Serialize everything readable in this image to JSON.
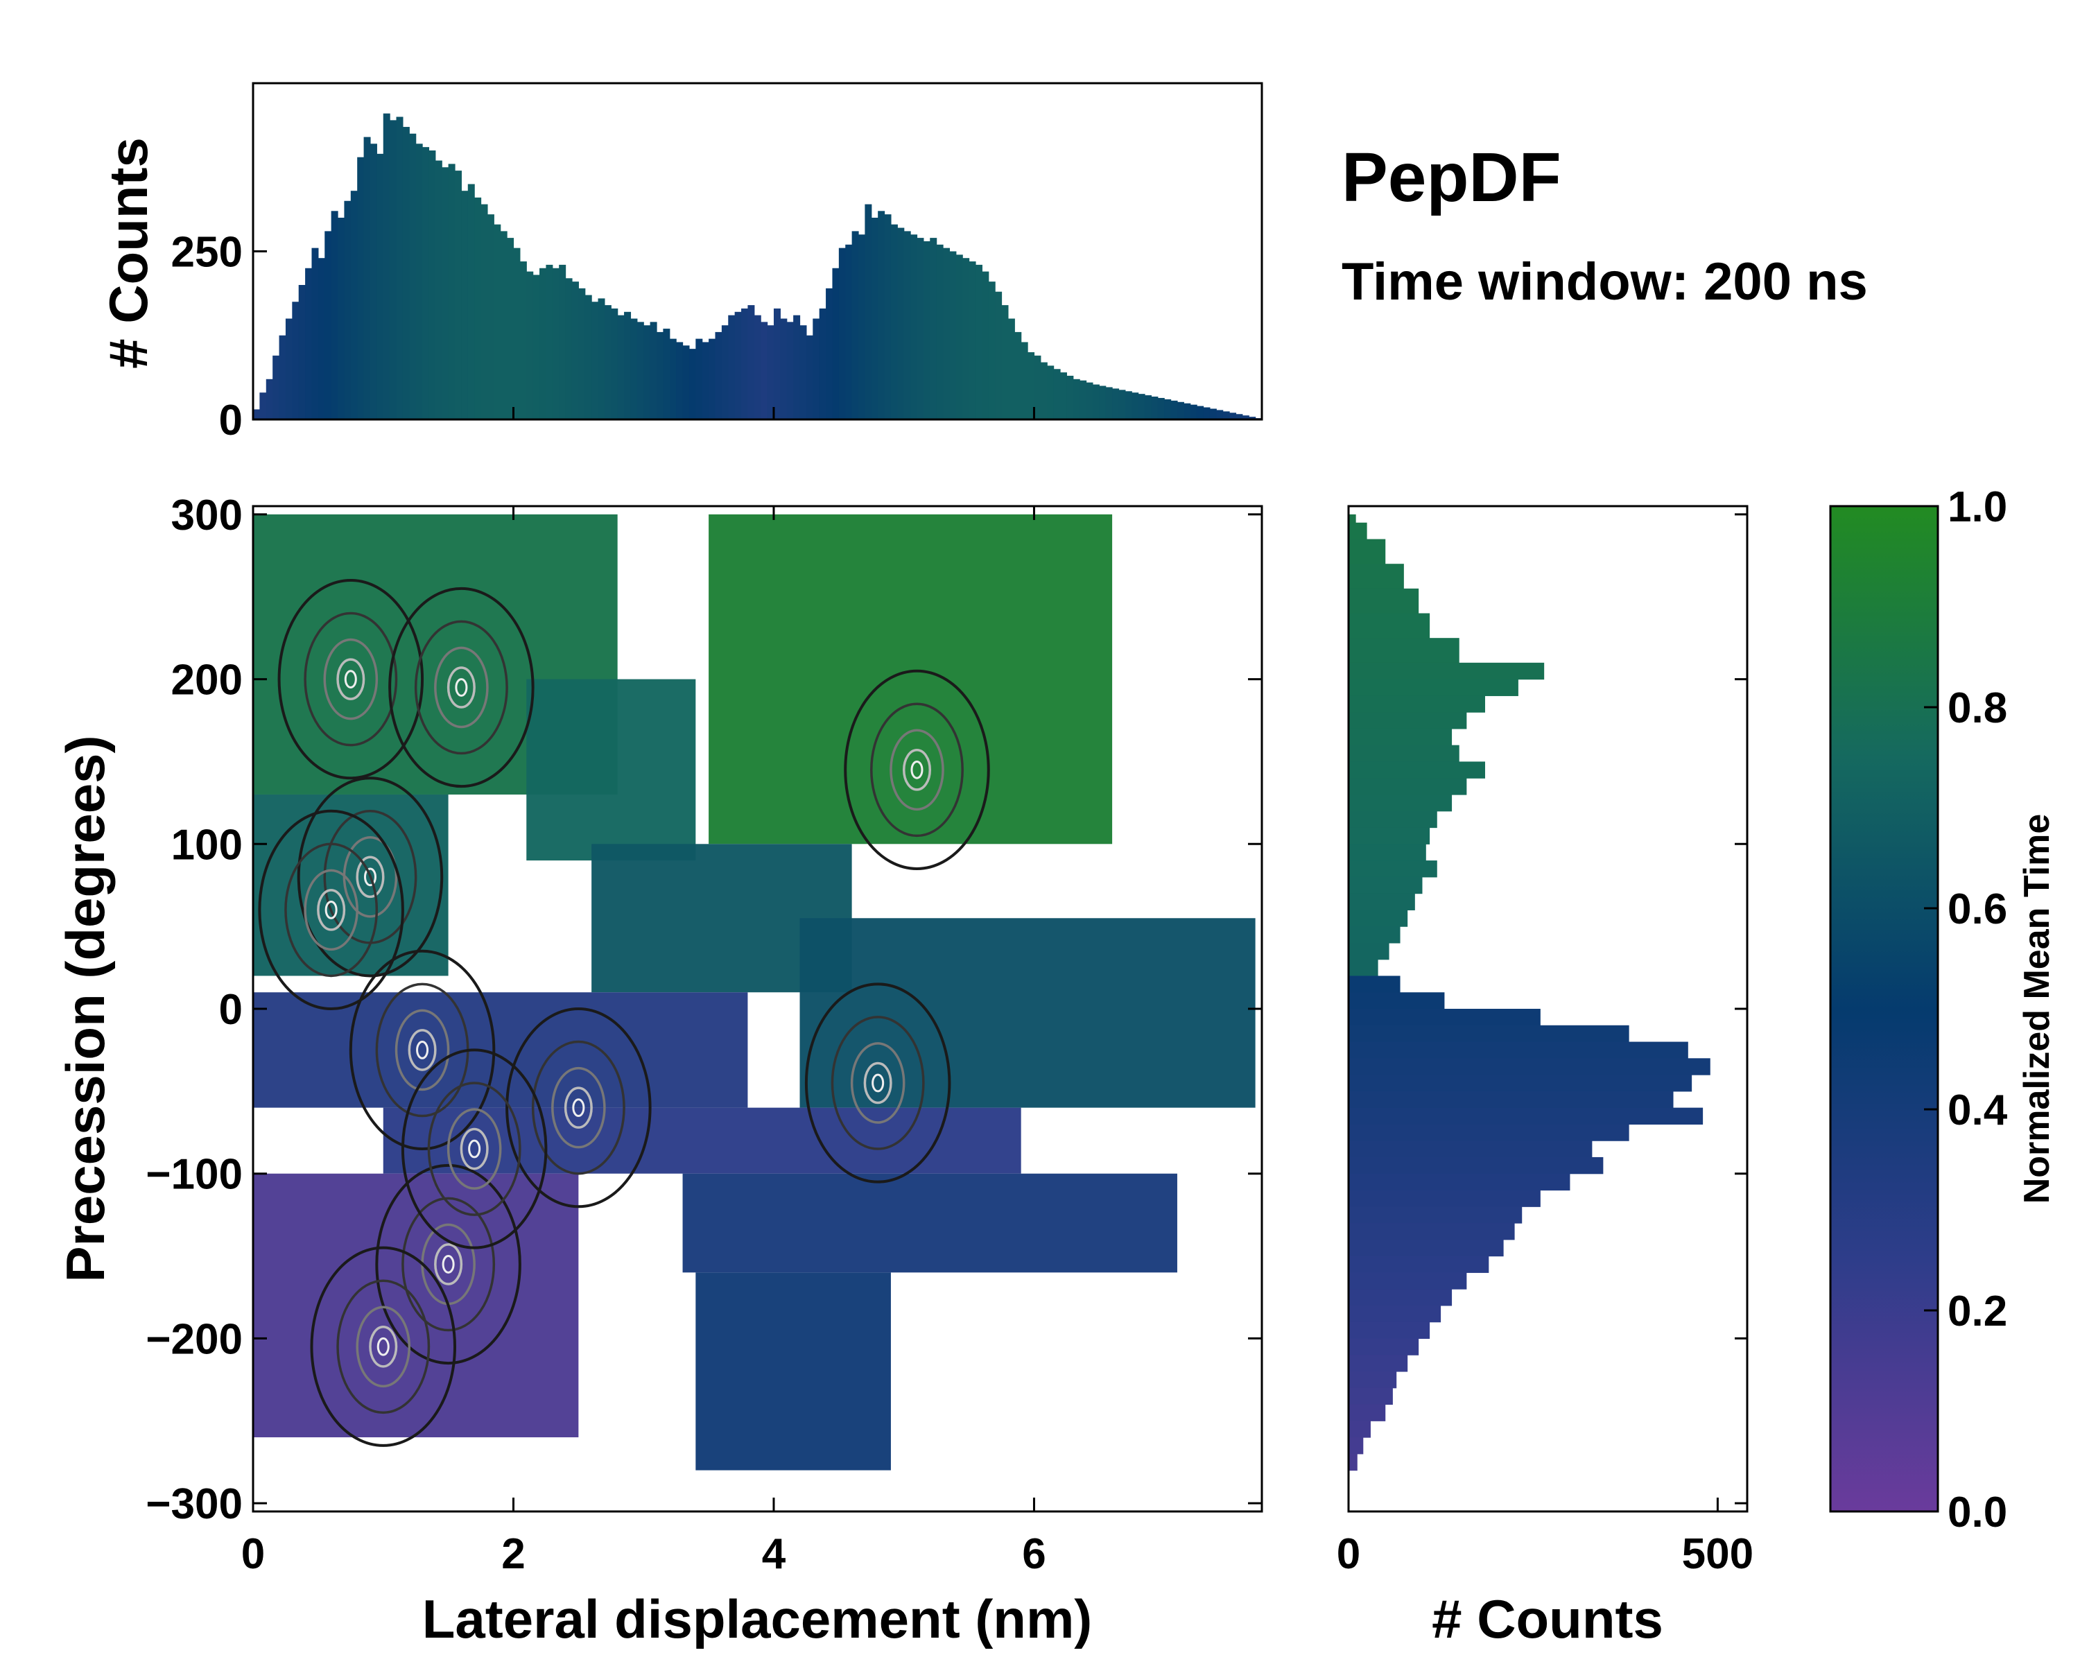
{
  "title": "PepDF",
  "subtitle": "Time window: 200 ns",
  "chart_data": [
    {
      "id": "main-2d",
      "type": "heatmap",
      "description_kind": "2D histogram colored by normalized mean time with density contours",
      "xlabel": "Lateral displacement (nm)",
      "ylabel": "Precession (degrees)",
      "xlim": [
        0,
        7.75
      ],
      "ylim": [
        -305,
        305
      ],
      "xticks": [
        0,
        2,
        4,
        6
      ],
      "yticks": [
        300,
        200,
        100,
        0,
        -100,
        -200,
        -300
      ],
      "xtick_labels": [
        "0",
        "2",
        "4",
        "6"
      ],
      "ytick_labels": [
        "300",
        "200",
        "100",
        "0",
        "−100",
        "−200",
        "−300"
      ],
      "regions": [
        {
          "x0": 0.0,
          "x1": 2.8,
          "y0": 130,
          "y1": 300,
          "value": 0.83
        },
        {
          "x0": 0.0,
          "x1": 1.5,
          "y0": 20,
          "y1": 130,
          "value": 0.72
        },
        {
          "x0": 2.1,
          "x1": 3.4,
          "y0": 90,
          "y1": 200,
          "value": 0.74
        },
        {
          "x0": 3.5,
          "x1": 6.6,
          "y0": 100,
          "y1": 300,
          "value": 0.92
        },
        {
          "x0": 2.6,
          "x1": 4.6,
          "y0": 10,
          "y1": 100,
          "value": 0.66
        },
        {
          "x0": 4.2,
          "x1": 7.7,
          "y0": -60,
          "y1": 55,
          "value": 0.62
        },
        {
          "x0": 0.0,
          "x1": 3.8,
          "y0": -60,
          "y1": 10,
          "value": 0.3
        },
        {
          "x0": 1.0,
          "x1": 5.9,
          "y0": -100,
          "y1": -60,
          "value": 0.26
        },
        {
          "x0": 0.0,
          "x1": 2.5,
          "y0": -260,
          "y1": -100,
          "value": 0.12
        },
        {
          "x0": 3.3,
          "x1": 7.1,
          "y0": -160,
          "y1": -100,
          "value": 0.37
        },
        {
          "x0": 3.4,
          "x1": 4.9,
          "y0": -280,
          "y1": -160,
          "value": 0.42
        }
      ],
      "density_peaks": [
        {
          "x": 0.75,
          "y": 200
        },
        {
          "x": 1.6,
          "y": 195
        },
        {
          "x": 0.9,
          "y": 80
        },
        {
          "x": 0.6,
          "y": 60
        },
        {
          "x": 4.8,
          "y": -45
        },
        {
          "x": 2.5,
          "y": -60
        },
        {
          "x": 1.3,
          "y": -25
        },
        {
          "x": 1.5,
          "y": -155
        },
        {
          "x": 1.0,
          "y": -205
        },
        {
          "x": 5.1,
          "y": 145
        },
        {
          "x": 1.7,
          "y": -85
        }
      ]
    },
    {
      "id": "top-histogram",
      "type": "bar",
      "description_kind": "marginal histogram of lateral displacement",
      "ylabel": "# Counts",
      "xlim": [
        0,
        7.75
      ],
      "ylim": [
        0,
        500
      ],
      "yticks": [
        0,
        250
      ],
      "ytick_labels": [
        "0",
        "250"
      ],
      "bin_width": 0.05,
      "x": [
        0.025,
        0.075,
        0.125,
        0.175,
        0.225,
        0.275,
        0.325,
        0.375,
        0.425,
        0.475,
        0.525,
        0.575,
        0.625,
        0.675,
        0.725,
        0.775,
        0.825,
        0.875,
        0.925,
        0.975,
        1.025,
        1.075,
        1.125,
        1.175,
        1.225,
        1.275,
        1.325,
        1.375,
        1.425,
        1.475,
        1.525,
        1.575,
        1.625,
        1.675,
        1.725,
        1.775,
        1.825,
        1.875,
        1.925,
        1.975,
        2.025,
        2.075,
        2.125,
        2.175,
        2.225,
        2.275,
        2.325,
        2.375,
        2.425,
        2.475,
        2.525,
        2.575,
        2.625,
        2.675,
        2.725,
        2.775,
        2.825,
        2.875,
        2.925,
        2.975,
        3.025,
        3.075,
        3.125,
        3.175,
        3.225,
        3.275,
        3.325,
        3.375,
        3.425,
        3.475,
        3.525,
        3.575,
        3.625,
        3.675,
        3.725,
        3.775,
        3.825,
        3.875,
        3.925,
        3.975,
        4.025,
        4.075,
        4.125,
        4.175,
        4.225,
        4.275,
        4.325,
        4.375,
        4.425,
        4.475,
        4.525,
        4.575,
        4.625,
        4.675,
        4.725,
        4.775,
        4.825,
        4.875,
        4.925,
        4.975,
        5.025,
        5.075,
        5.125,
        5.175,
        5.225,
        5.275,
        5.325,
        5.375,
        5.425,
        5.475,
        5.525,
        5.575,
        5.625,
        5.675,
        5.725,
        5.775,
        5.825,
        5.875,
        5.925,
        5.975,
        6.025,
        6.075,
        6.125,
        6.175,
        6.225,
        6.275,
        6.325,
        6.375,
        6.425,
        6.475,
        6.525,
        6.575,
        6.625,
        6.675,
        6.725,
        6.775,
        6.825,
        6.875,
        6.925,
        6.975,
        7.025,
        7.075,
        7.125,
        7.175,
        7.225,
        7.275,
        7.325,
        7.375,
        7.425,
        7.475,
        7.525,
        7.575,
        7.625,
        7.675,
        7.725
      ],
      "values": [
        15,
        40,
        60,
        95,
        125,
        150,
        175,
        200,
        225,
        255,
        240,
        280,
        310,
        300,
        325,
        340,
        390,
        420,
        410,
        395,
        455,
        445,
        450,
        435,
        425,
        410,
        405,
        400,
        385,
        375,
        380,
        370,
        340,
        350,
        330,
        320,
        305,
        290,
        280,
        270,
        255,
        235,
        220,
        215,
        225,
        230,
        225,
        230,
        210,
        205,
        195,
        185,
        175,
        180,
        170,
        165,
        155,
        160,
        150,
        145,
        140,
        145,
        130,
        135,
        120,
        115,
        110,
        105,
        120,
        115,
        120,
        130,
        140,
        155,
        160,
        165,
        170,
        155,
        145,
        140,
        165,
        150,
        145,
        155,
        140,
        125,
        150,
        165,
        195,
        225,
        255,
        260,
        280,
        275,
        320,
        300,
        310,
        305,
        290,
        285,
        280,
        275,
        270,
        265,
        270,
        260,
        255,
        250,
        245,
        240,
        235,
        230,
        220,
        205,
        190,
        170,
        150,
        130,
        115,
        100,
        95,
        85,
        80,
        75,
        70,
        65,
        60,
        58,
        55,
        52,
        50,
        48,
        46,
        44,
        42,
        40,
        38,
        36,
        34,
        32,
        30,
        28,
        26,
        24,
        22,
        20,
        18,
        16,
        14,
        12,
        10,
        8,
        6,
        4,
        2
      ]
    },
    {
      "id": "right-histogram",
      "type": "bar",
      "description_kind": "marginal histogram of precession (horizontal bars)",
      "xlabel": "# Counts",
      "xlim": [
        0,
        540
      ],
      "ylim": [
        -305,
        305
      ],
      "xticks": [
        0,
        500
      ],
      "xtick_labels": [
        "0",
        "500"
      ],
      "bin_width": 5,
      "bins": [
        {
          "y0": 295,
          "y1": 300,
          "v": 10
        },
        {
          "y0": 285,
          "y1": 295,
          "v": 25
        },
        {
          "y0": 270,
          "y1": 285,
          "v": 50
        },
        {
          "y0": 255,
          "y1": 270,
          "v": 75
        },
        {
          "y0": 240,
          "y1": 255,
          "v": 95
        },
        {
          "y0": 225,
          "y1": 240,
          "v": 110
        },
        {
          "y0": 210,
          "y1": 225,
          "v": 150
        },
        {
          "y0": 200,
          "y1": 210,
          "v": 265
        },
        {
          "y0": 190,
          "y1": 200,
          "v": 230
        },
        {
          "y0": 180,
          "y1": 190,
          "v": 185
        },
        {
          "y0": 170,
          "y1": 180,
          "v": 160
        },
        {
          "y0": 160,
          "y1": 170,
          "v": 140
        },
        {
          "y0": 150,
          "y1": 160,
          "v": 150
        },
        {
          "y0": 140,
          "y1": 150,
          "v": 185
        },
        {
          "y0": 130,
          "y1": 140,
          "v": 160
        },
        {
          "y0": 120,
          "y1": 130,
          "v": 140
        },
        {
          "y0": 110,
          "y1": 120,
          "v": 120
        },
        {
          "y0": 100,
          "y1": 110,
          "v": 110
        },
        {
          "y0": 90,
          "y1": 100,
          "v": 105
        },
        {
          "y0": 80,
          "y1": 90,
          "v": 120
        },
        {
          "y0": 70,
          "y1": 80,
          "v": 100
        },
        {
          "y0": 60,
          "y1": 70,
          "v": 90
        },
        {
          "y0": 50,
          "y1": 60,
          "v": 80
        },
        {
          "y0": 40,
          "y1": 50,
          "v": 70
        },
        {
          "y0": 30,
          "y1": 40,
          "v": 55
        },
        {
          "y0": 20,
          "y1": 30,
          "v": 40
        },
        {
          "y0": 10,
          "y1": 20,
          "v": 70
        },
        {
          "y0": 0,
          "y1": 10,
          "v": 130
        },
        {
          "y0": -10,
          "y1": 0,
          "v": 260
        },
        {
          "y0": -20,
          "y1": -10,
          "v": 380
        },
        {
          "y0": -30,
          "y1": -20,
          "v": 460
        },
        {
          "y0": -40,
          "y1": -30,
          "v": 490
        },
        {
          "y0": -50,
          "y1": -40,
          "v": 465
        },
        {
          "y0": -60,
          "y1": -50,
          "v": 440
        },
        {
          "y0": -70,
          "y1": -60,
          "v": 480
        },
        {
          "y0": -80,
          "y1": -70,
          "v": 380
        },
        {
          "y0": -90,
          "y1": -80,
          "v": 330
        },
        {
          "y0": -100,
          "y1": -90,
          "v": 345
        },
        {
          "y0": -110,
          "y1": -100,
          "v": 300
        },
        {
          "y0": -120,
          "y1": -110,
          "v": 260
        },
        {
          "y0": -130,
          "y1": -120,
          "v": 235
        },
        {
          "y0": -140,
          "y1": -130,
          "v": 225
        },
        {
          "y0": -150,
          "y1": -140,
          "v": 210
        },
        {
          "y0": -160,
          "y1": -150,
          "v": 190
        },
        {
          "y0": -170,
          "y1": -160,
          "v": 160
        },
        {
          "y0": -180,
          "y1": -170,
          "v": 140
        },
        {
          "y0": -190,
          "y1": -180,
          "v": 125
        },
        {
          "y0": -200,
          "y1": -190,
          "v": 110
        },
        {
          "y0": -210,
          "y1": -200,
          "v": 95
        },
        {
          "y0": -220,
          "y1": -210,
          "v": 80
        },
        {
          "y0": -230,
          "y1": -220,
          "v": 65
        },
        {
          "y0": -240,
          "y1": -230,
          "v": 60
        },
        {
          "y0": -250,
          "y1": -240,
          "v": 50
        },
        {
          "y0": -260,
          "y1": -250,
          "v": 30
        },
        {
          "y0": -270,
          "y1": -260,
          "v": 20
        },
        {
          "y0": -280,
          "y1": -270,
          "v": 12
        }
      ]
    },
    {
      "id": "colorbar",
      "type": "colorbar",
      "label": "Normalized Mean Time",
      "range": [
        0.0,
        1.0
      ],
      "ticks": [
        0.0,
        0.2,
        0.4,
        0.6,
        0.8,
        1.0
      ],
      "tick_labels": [
        "0.0",
        "0.2",
        "0.4",
        "0.6",
        "0.8",
        "1.0"
      ],
      "colormap": [
        "#6a3b9c",
        "#2e3d8a",
        "#053b6e",
        "#15695f",
        "#228b22"
      ]
    }
  ]
}
